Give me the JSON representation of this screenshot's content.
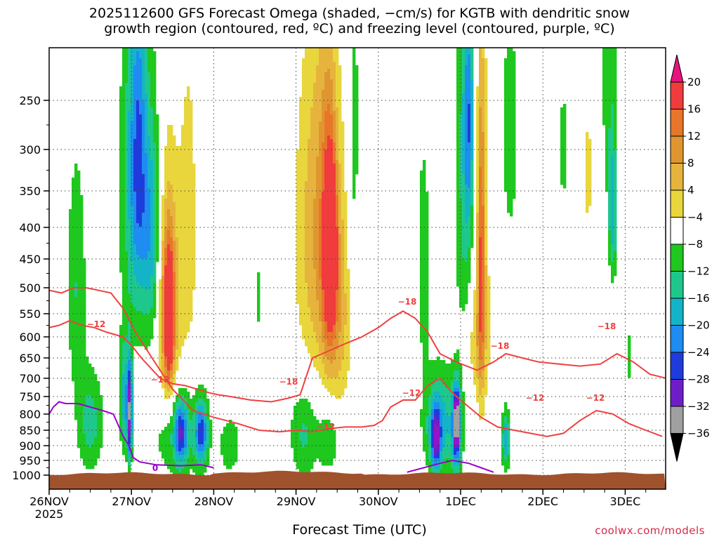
{
  "title_line1": "2025112600 GFS Forecast Omega (shaded, −cm/s) for KGTB with dendritic snow",
  "title_line2": "growth region (contoured, red, ºC) and freezing level (contoured, purple, ºC)",
  "xlabel": "Forecast Time (UTC)",
  "credit": "coolwx.com/models",
  "colors": {
    "terrain": "#a0522d",
    "dendritic_contour": "#f04040",
    "freezing_contour": "#9900cc",
    "grid": "#444444"
  },
  "chart_data": {
    "type": "heatmap",
    "y_axis": {
      "unit": "hPa",
      "inverted": true,
      "ticks": [
        250,
        300,
        350,
        400,
        450,
        500,
        550,
        600,
        650,
        700,
        750,
        800,
        850,
        900,
        950,
        1000
      ]
    },
    "x_axis": {
      "ticks": [
        {
          "label": "26NOV",
          "sub": "2025"
        },
        {
          "label": "27NOV",
          "sub": ""
        },
        {
          "label": "28NOV",
          "sub": ""
        },
        {
          "label": "29NOV",
          "sub": ""
        },
        {
          "label": "30NOV",
          "sub": ""
        },
        {
          "label": "1DEC",
          "sub": ""
        },
        {
          "label": "2DEC",
          "sub": ""
        },
        {
          "label": "3DEC",
          "sub": ""
        }
      ]
    },
    "grid": true,
    "colorbar": {
      "levels": [
        {
          "label": "20",
          "color": "#f03c3c"
        },
        {
          "label": "16",
          "color": "#e8762a"
        },
        {
          "label": "12",
          "color": "#e09630"
        },
        {
          "label": "8",
          "color": "#e6b43c"
        },
        {
          "label": "4",
          "color": "#e8d63c"
        },
        {
          "label": "−4",
          "color": "#ffffff"
        },
        {
          "label": "−8",
          "color": "#1ec81e"
        },
        {
          "label": "−12",
          "color": "#1ec88c"
        },
        {
          "label": "−16",
          "color": "#14b4c8"
        },
        {
          "label": "−20",
          "color": "#1e8cf0"
        },
        {
          "label": "−24",
          "color": "#1e3cdc"
        },
        {
          "label": "−28",
          "color": "#6e1ec8"
        },
        {
          "label": "−32",
          "color": "#9614c8"
        },
        {
          "label": "−36",
          "color": "#a0a0a0"
        }
      ],
      "top_arrow_color": "#e6147d",
      "bottom_arrow_color": "#000000"
    },
    "contour_labels": {
      "dendritic": [
        "−12",
        "−18",
        "−18",
        "−18",
        "−12",
        "−12",
        "−18",
        "−12",
        "−12",
        "−18"
      ],
      "freezing": [
        "0"
      ]
    },
    "omega_blobs": [
      {
        "t": 0.33,
        "p": 500,
        "w": 0.12,
        "h": 220,
        "v": -8
      },
      {
        "t": 1.05,
        "p": 350,
        "w": 0.2,
        "h": 260,
        "v": -10
      },
      {
        "t": 1.1,
        "p": 300,
        "w": 0.12,
        "h": 180,
        "v": -14
      },
      {
        "t": 1.2,
        "p": 260,
        "w": 0.1,
        "h": 120,
        "v": 6
      },
      {
        "t": 1.25,
        "p": 400,
        "w": 0.1,
        "h": 200,
        "v": -12
      },
      {
        "t": 1.45,
        "p": 550,
        "w": 0.18,
        "h": 260,
        "v": 8
      },
      {
        "t": 1.45,
        "p": 560,
        "w": 0.09,
        "h": 190,
        "v": 14
      },
      {
        "t": 1.46,
        "p": 560,
        "w": 0.05,
        "h": 120,
        "v": 19
      },
      {
        "t": 1.7,
        "p": 400,
        "w": 0.13,
        "h": 300,
        "v": 5
      },
      {
        "t": 0.92,
        "p": 760,
        "w": 0.06,
        "h": 160,
        "v": -14
      },
      {
        "t": 0.98,
        "p": 800,
        "w": 0.03,
        "h": 140,
        "v": -28
      },
      {
        "t": 0.5,
        "p": 830,
        "w": 0.16,
        "h": 160,
        "v": -10
      },
      {
        "t": 1.55,
        "p": 850,
        "w": 0.3,
        "h": 170,
        "v": -9
      },
      {
        "t": 1.6,
        "p": 860,
        "w": 0.08,
        "h": 100,
        "v": -18
      },
      {
        "t": 1.85,
        "p": 860,
        "w": 0.08,
        "h": 100,
        "v": -20
      },
      {
        "t": 2.2,
        "p": 900,
        "w": 0.16,
        "h": 120,
        "v": -6
      },
      {
        "t": 3.15,
        "p": 420,
        "w": 0.22,
        "h": 260,
        "v": 6
      },
      {
        "t": 3.35,
        "p": 400,
        "w": 0.2,
        "h": 280,
        "v": 10
      },
      {
        "t": 3.4,
        "p": 430,
        "w": 0.08,
        "h": 180,
        "v": 18
      },
      {
        "t": 3.45,
        "p": 430,
        "w": 0.04,
        "h": 90,
        "v": 22
      },
      {
        "t": 3.52,
        "p": 550,
        "w": 0.16,
        "h": 220,
        "v": 9
      },
      {
        "t": 3.1,
        "p": 860,
        "w": 0.18,
        "h": 150,
        "v": -9
      },
      {
        "t": 3.4,
        "p": 880,
        "w": 0.12,
        "h": 110,
        "v": -8
      },
      {
        "t": 3.7,
        "p": 300,
        "w": 0.08,
        "h": 250,
        "v": -6
      },
      {
        "t": 4.55,
        "p": 460,
        "w": 0.08,
        "h": 200,
        "v": -7
      },
      {
        "t": 4.75,
        "p": 830,
        "w": 0.2,
        "h": 160,
        "v": -14
      },
      {
        "t": 4.7,
        "p": 880,
        "w": 0.06,
        "h": 100,
        "v": -20
      },
      {
        "t": 4.95,
        "p": 850,
        "w": 0.06,
        "h": 150,
        "v": -18
      },
      {
        "t": 4.95,
        "p": 820,
        "w": 0.025,
        "h": 80,
        "v": -27
      },
      {
        "t": 5.05,
        "p": 350,
        "w": 0.12,
        "h": 360,
        "v": -9
      },
      {
        "t": 5.1,
        "p": 270,
        "w": 0.06,
        "h": 120,
        "v": -14
      },
      {
        "t": 5.25,
        "p": 450,
        "w": 0.1,
        "h": 330,
        "v": 8
      },
      {
        "t": 5.25,
        "p": 450,
        "w": 0.04,
        "h": 250,
        "v": 14
      },
      {
        "t": 5.15,
        "p": 620,
        "w": 0.18,
        "h": 120,
        "v": 6
      },
      {
        "t": 5.6,
        "p": 280,
        "w": 0.1,
        "h": 140,
        "v": -7
      },
      {
        "t": 5.55,
        "p": 880,
        "w": 0.05,
        "h": 100,
        "v": -15
      },
      {
        "t": 6.8,
        "p": 200,
        "w": 0.1,
        "h": 160,
        "v": -7
      },
      {
        "t": 6.85,
        "p": 380,
        "w": 0.05,
        "h": 100,
        "v": -14
      },
      {
        "t": 6.55,
        "p": 330,
        "w": 0.06,
        "h": 120,
        "v": 5
      },
      {
        "t": 6.25,
        "p": 300,
        "w": 0.06,
        "h": 80,
        "v": -6
      },
      {
        "t": 7.05,
        "p": 650,
        "w": 0.05,
        "h": 80,
        "v": -6
      },
      {
        "t": 2.55,
        "p": 520,
        "w": 0.05,
        "h": 100,
        "v": -5
      }
    ],
    "dendritic_lines": [
      {
        "t": [
          0,
          0.12,
          0.25,
          0.4,
          0.55,
          0.7,
          0.9,
          1.0,
          1.12,
          1.35,
          1.5,
          1.65,
          1.8,
          1.95,
          2.05,
          2.2,
          2.45,
          2.7,
          2.9,
          3.05,
          3.2,
          3.32,
          3.55,
          3.8,
          4.0,
          4.15,
          4.3,
          4.45,
          4.6,
          4.75,
          4.95,
          5.2,
          5.4,
          5.55,
          5.75,
          5.95,
          6.2,
          6.45,
          6.7,
          6.9,
          7.1,
          7.3,
          7.5
        ],
        "p": [
          580,
          575,
          565,
          575,
          580,
          590,
          600,
          620,
          650,
          700,
          715,
          720,
          730,
          740,
          745,
          750,
          760,
          765,
          755,
          745,
          650,
          640,
          620,
          600,
          580,
          560,
          545,
          560,
          590,
          640,
          660,
          680,
          660,
          640,
          650,
          660,
          665,
          670,
          665,
          640,
          660,
          690,
          700
        ]
      },
      {
        "t": [
          0,
          0.15,
          0.3,
          0.45,
          0.6,
          0.75,
          0.9,
          1.05,
          1.25,
          1.5,
          1.75,
          2.0,
          2.3,
          2.55,
          2.8,
          3.0,
          3.2,
          3.4,
          3.6,
          3.8,
          3.95,
          4.05,
          4.15,
          4.3,
          4.45,
          4.6,
          4.75,
          4.9,
          5.05,
          5.25,
          5.45,
          5.65,
          5.85,
          6.05,
          6.25,
          6.45,
          6.65,
          6.85,
          7.05,
          7.25,
          7.45
        ],
        "p": [
          505,
          510,
          500,
          500,
          505,
          510,
          540,
          590,
          650,
          730,
          790,
          810,
          830,
          850,
          855,
          850,
          855,
          845,
          840,
          840,
          835,
          820,
          780,
          760,
          760,
          720,
          700,
          740,
          770,
          810,
          840,
          850,
          860,
          870,
          860,
          820,
          790,
          800,
          830,
          850,
          870
        ]
      }
    ],
    "freezing_line": {
      "t": [
        0,
        0.05,
        0.12,
        0.2,
        0.35,
        0.5,
        0.65,
        0.78,
        0.85,
        0.9,
        0.97,
        1.02,
        1.1,
        1.3,
        1.6,
        1.85,
        2.0
      ],
      "p": [
        800,
        780,
        765,
        770,
        770,
        780,
        790,
        800,
        840,
        870,
        900,
        940,
        955,
        965,
        968,
        965,
        975
      ]
    },
    "freezing_line_2": {
      "t": [
        4.35,
        4.55,
        4.75,
        4.9,
        5.0,
        5.1,
        5.25,
        5.4
      ],
      "p": [
        990,
        975,
        960,
        950,
        955,
        960,
        975,
        990
      ]
    }
  }
}
